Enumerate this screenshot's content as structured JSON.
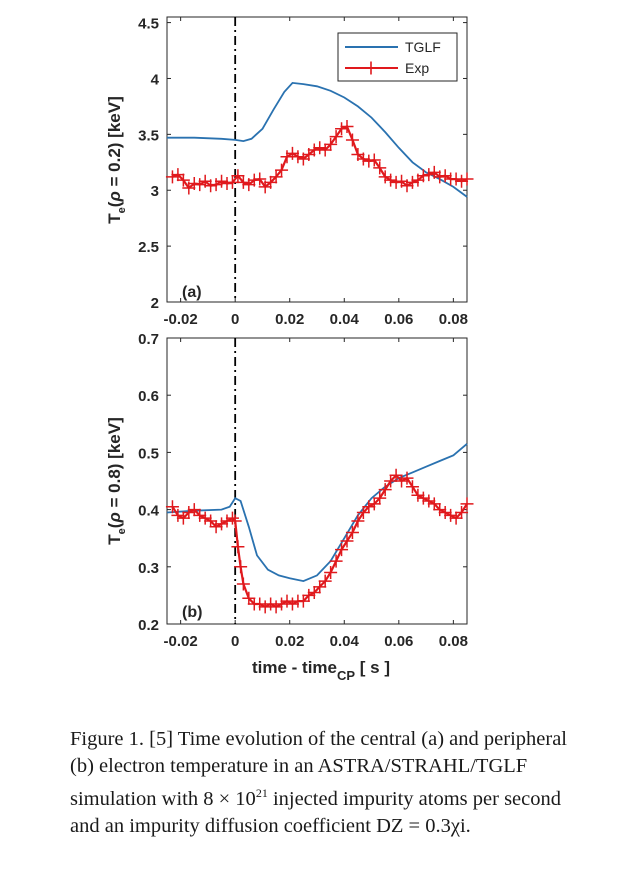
{
  "chart_data": [
    {
      "type": "line",
      "panel_label": "(a)",
      "ylabel": "T_e(ρ = 0.2) [keV]",
      "xlabel": "",
      "xlim": [
        -0.025,
        0.085
      ],
      "ylim": [
        2,
        4.55
      ],
      "xticks": [
        -0.02,
        0,
        0.02,
        0.04,
        0.06,
        0.08
      ],
      "xtick_labels": [
        "-0.02",
        "0",
        "0.02",
        "0.04",
        "0.06",
        "0.08"
      ],
      "yticks": [
        2,
        2.5,
        3,
        3.5,
        4,
        4.5
      ],
      "ytick_labels": [
        "2",
        "2.5",
        "3",
        "3.5",
        "4",
        "4.5"
      ],
      "vline_x": 0,
      "legend": {
        "position": "top-right",
        "entries": [
          "TGLF",
          "Exp"
        ]
      },
      "series": [
        {
          "name": "TGLF",
          "color": "#2a72b0",
          "marker": "none",
          "x": [
            -0.025,
            -0.015,
            -0.005,
            0.0,
            0.003,
            0.006,
            0.01,
            0.014,
            0.018,
            0.021,
            0.025,
            0.03,
            0.035,
            0.04,
            0.045,
            0.05,
            0.055,
            0.06,
            0.065,
            0.07,
            0.075,
            0.08,
            0.085
          ],
          "y": [
            3.47,
            3.47,
            3.46,
            3.45,
            3.44,
            3.46,
            3.55,
            3.72,
            3.88,
            3.96,
            3.95,
            3.93,
            3.89,
            3.83,
            3.75,
            3.65,
            3.52,
            3.38,
            3.25,
            3.16,
            3.1,
            3.03,
            2.94
          ]
        },
        {
          "name": "Exp",
          "color": "#e0191d",
          "marker": "plus",
          "x": [
            -0.023,
            -0.021,
            -0.019,
            -0.017,
            -0.015,
            -0.013,
            -0.011,
            -0.009,
            -0.007,
            -0.005,
            -0.003,
            -0.001,
            0.001,
            0.003,
            0.005,
            0.007,
            0.009,
            0.011,
            0.013,
            0.015,
            0.017,
            0.019,
            0.021,
            0.023,
            0.025,
            0.027,
            0.029,
            0.031,
            0.033,
            0.035,
            0.037,
            0.039,
            0.041,
            0.043,
            0.045,
            0.047,
            0.049,
            0.051,
            0.053,
            0.055,
            0.057,
            0.059,
            0.061,
            0.063,
            0.065,
            0.067,
            0.069,
            0.071,
            0.073,
            0.075,
            0.077,
            0.079,
            0.081,
            0.083,
            0.085
          ],
          "y": [
            3.12,
            3.14,
            3.09,
            3.02,
            3.06,
            3.05,
            3.08,
            3.04,
            3.05,
            3.08,
            3.06,
            3.07,
            3.13,
            3.07,
            3.05,
            3.09,
            3.1,
            3.03,
            3.07,
            3.12,
            3.18,
            3.3,
            3.33,
            3.3,
            3.28,
            3.32,
            3.36,
            3.38,
            3.36,
            3.41,
            3.48,
            3.55,
            3.57,
            3.45,
            3.32,
            3.28,
            3.26,
            3.27,
            3.2,
            3.12,
            3.09,
            3.07,
            3.08,
            3.04,
            3.07,
            3.09,
            3.13,
            3.14,
            3.16,
            3.12,
            3.13,
            3.1,
            3.1,
            3.08,
            3.1
          ]
        }
      ]
    },
    {
      "type": "line",
      "panel_label": "(b)",
      "ylabel": "T_e(ρ = 0.8) [keV]",
      "xlabel": "time - time_CP [ s ]",
      "xlim": [
        -0.025,
        0.085
      ],
      "ylim": [
        0.2,
        0.7
      ],
      "xticks": [
        -0.02,
        0,
        0.02,
        0.04,
        0.06,
        0.08
      ],
      "xtick_labels": [
        "-0.02",
        "0",
        "0.02",
        "0.04",
        "0.06",
        "0.08"
      ],
      "yticks": [
        0.2,
        0.3,
        0.4,
        0.5,
        0.6,
        0.7
      ],
      "ytick_labels": [
        "0.2",
        "0.3",
        "0.4",
        "0.5",
        "0.6",
        "0.7"
      ],
      "vline_x": 0,
      "series": [
        {
          "name": "TGLF",
          "color": "#2a72b0",
          "marker": "none",
          "x": [
            -0.025,
            -0.015,
            -0.005,
            -0.002,
            0.0,
            0.002,
            0.005,
            0.008,
            0.012,
            0.016,
            0.02,
            0.025,
            0.03,
            0.035,
            0.04,
            0.045,
            0.05,
            0.055,
            0.06,
            0.065,
            0.07,
            0.075,
            0.08,
            0.085
          ],
          "y": [
            0.395,
            0.398,
            0.4,
            0.405,
            0.42,
            0.415,
            0.37,
            0.32,
            0.295,
            0.285,
            0.28,
            0.275,
            0.285,
            0.31,
            0.35,
            0.39,
            0.42,
            0.44,
            0.455,
            0.465,
            0.475,
            0.485,
            0.495,
            0.515
          ]
        },
        {
          "name": "Exp",
          "color": "#e0191d",
          "marker": "plus",
          "x": [
            -0.023,
            -0.021,
            -0.019,
            -0.017,
            -0.015,
            -0.013,
            -0.011,
            -0.009,
            -0.007,
            -0.005,
            -0.003,
            -0.001,
            0.0,
            0.001,
            0.002,
            0.003,
            0.005,
            0.007,
            0.009,
            0.011,
            0.013,
            0.015,
            0.017,
            0.019,
            0.021,
            0.023,
            0.025,
            0.027,
            0.029,
            0.031,
            0.033,
            0.035,
            0.037,
            0.039,
            0.041,
            0.043,
            0.045,
            0.047,
            0.049,
            0.051,
            0.053,
            0.055,
            0.057,
            0.059,
            0.061,
            0.063,
            0.065,
            0.067,
            0.069,
            0.071,
            0.073,
            0.075,
            0.077,
            0.079,
            0.081,
            0.083,
            0.085
          ],
          "y": [
            0.405,
            0.39,
            0.385,
            0.395,
            0.4,
            0.39,
            0.385,
            0.38,
            0.37,
            0.375,
            0.38,
            0.385,
            0.38,
            0.335,
            0.3,
            0.27,
            0.245,
            0.235,
            0.235,
            0.23,
            0.235,
            0.23,
            0.235,
            0.24,
            0.235,
            0.24,
            0.24,
            0.25,
            0.255,
            0.265,
            0.275,
            0.29,
            0.31,
            0.33,
            0.345,
            0.36,
            0.38,
            0.395,
            0.405,
            0.41,
            0.42,
            0.435,
            0.45,
            0.46,
            0.45,
            0.455,
            0.44,
            0.425,
            0.42,
            0.415,
            0.41,
            0.4,
            0.395,
            0.39,
            0.385,
            0.395,
            0.41
          ]
        }
      ]
    }
  ],
  "caption": {
    "text_before": "Figure 1. [5] Time evolution of the central (a) and peripheral (b) electron temperature in an ASTRA/STRAHL/TGLF simulation with 8 × 10",
    "superscript": "21",
    "text_after": " injected impurity atoms per second and an impurity diffusion coefficient DZ = 0.3χi."
  }
}
